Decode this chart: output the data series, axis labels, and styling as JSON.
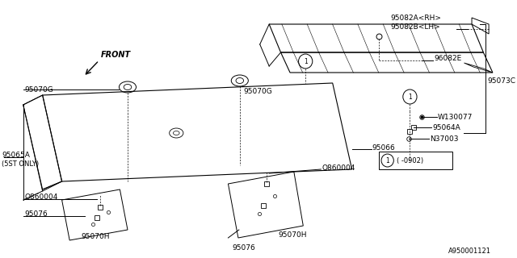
{
  "bg_color": "#ffffff",
  "line_color": "#000000",
  "font_size": 6.5,
  "labels": {
    "95082A_RH": "95082A<RH>",
    "95082B_LH": "95082B<LH>",
    "96082E": "96082E",
    "95073C": "95073C",
    "W130077": "W130077",
    "95064A": "95064A",
    "N37003": "N37003",
    "95070G_left": "95070G",
    "95070G_right": "95070G",
    "95066": "95066",
    "95065A": "95065A",
    "5ST_ONLY": "(5ST ONLY)",
    "Q860004_left": "Q860004",
    "Q860004_right": "Q860004",
    "95076_left": "95076",
    "95076_right": "95076",
    "95070H_left": "95070H",
    "95070H_right": "95070H",
    "watermark": "A950001121"
  }
}
